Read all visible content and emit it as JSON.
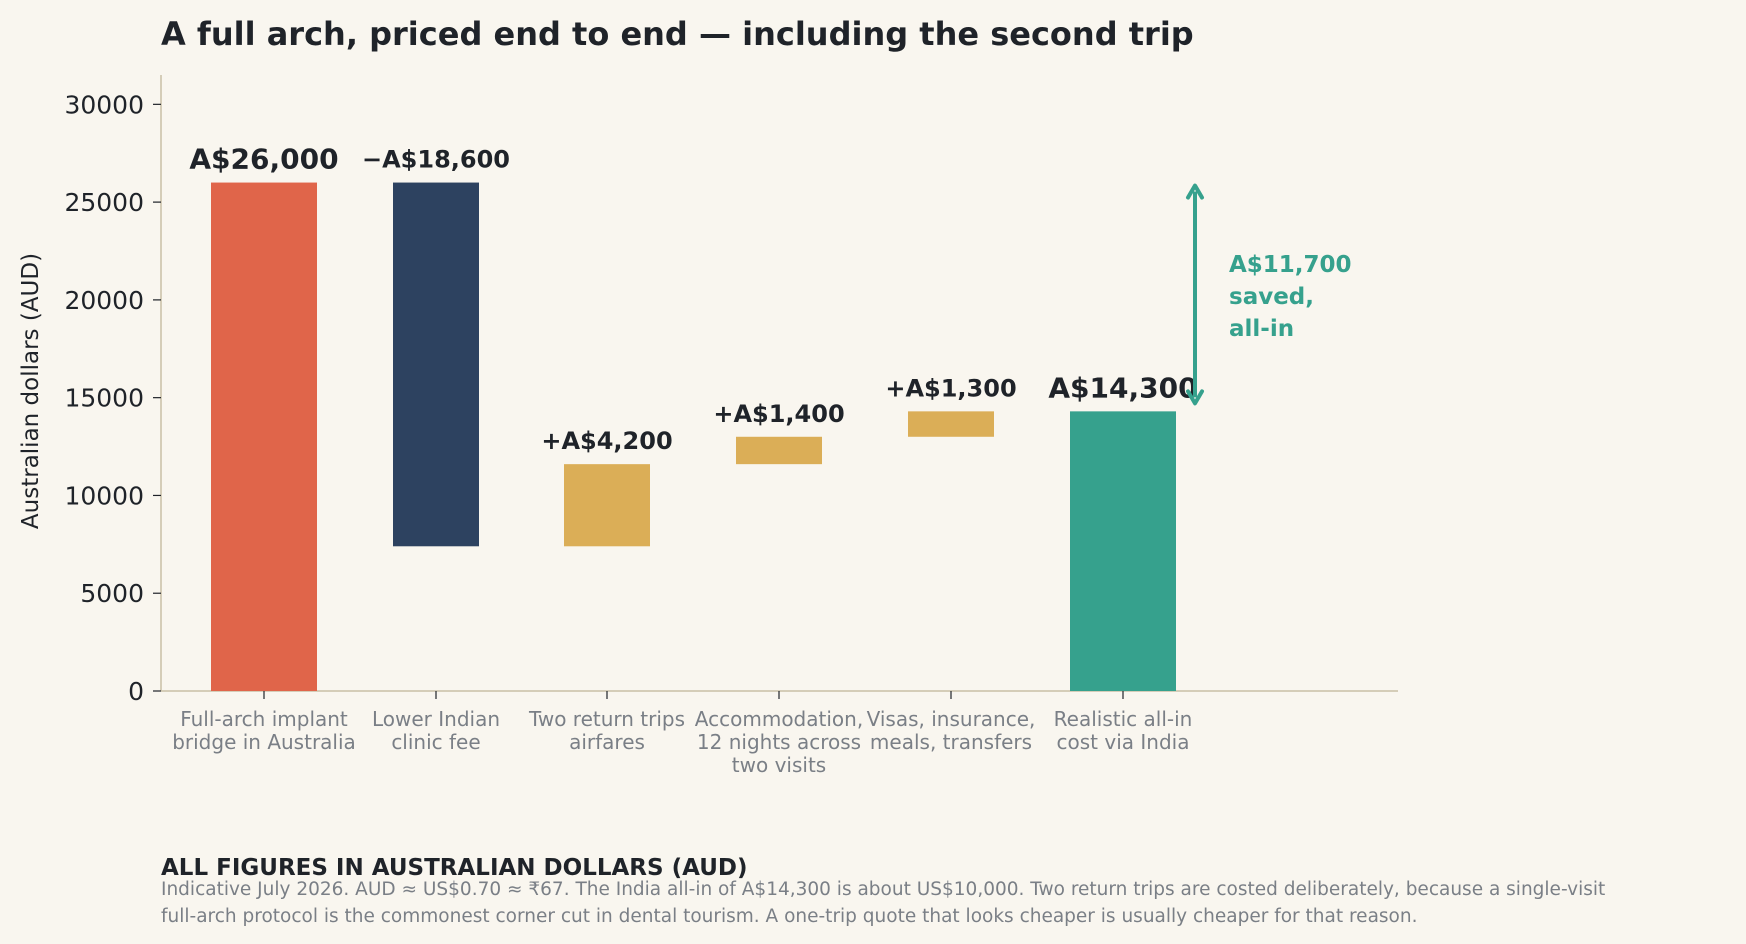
{
  "chart_data": {
    "type": "bar",
    "subtype": "waterfall",
    "title": "A full arch, priced end to end — including the second trip",
    "ylabel": "Australian dollars (AUD)",
    "ylim": [
      0,
      31500
    ],
    "yticks": [
      0,
      5000,
      10000,
      15000,
      20000,
      25000,
      30000
    ],
    "grid": false,
    "categories": [
      [
        "Full-arch implant",
        "bridge in Australia"
      ],
      [
        "Lower Indian",
        "clinic fee"
      ],
      [
        "Two return trips",
        "airfares"
      ],
      [
        "Accommodation,",
        "12 nights across",
        "two visits"
      ],
      [
        "Visas, insurance,",
        "meals, transfers"
      ],
      [
        "Realistic all-in",
        "cost via India"
      ]
    ],
    "bars": [
      {
        "kind": "total",
        "start": 0,
        "end": 26000,
        "label": "A$26,000",
        "color": "#e0654a"
      },
      {
        "kind": "decrease",
        "start": 26000,
        "end": 7400,
        "label": "−A$18,600",
        "color": "#2d4260"
      },
      {
        "kind": "increase",
        "start": 7400,
        "end": 11600,
        "label": "+A$4,200",
        "color": "#dbae57"
      },
      {
        "kind": "increase",
        "start": 11600,
        "end": 13000,
        "label": "+A$1,400",
        "color": "#dbae57"
      },
      {
        "kind": "increase",
        "start": 13000,
        "end": 14300,
        "label": "+A$1,300",
        "color": "#dbae57"
      },
      {
        "kind": "total",
        "start": 0,
        "end": 14300,
        "label": "A$14,300",
        "color": "#36a18d"
      }
    ],
    "annotation": {
      "from": 26000,
      "to": 14300,
      "text": [
        "A$11,700",
        "saved,",
        "all-in"
      ],
      "color": "#36a18d"
    }
  },
  "footnote": {
    "heading": "ALL FIGURES IN AUSTRALIAN DOLLARS (AUD)",
    "lines": [
      "Indicative July 2026. AUD ≈ US$0.70 ≈ ₹67. The India all-in of A$14,300 is about US$10,000. Two return trips are costed deliberately, because a single-visit",
      "full-arch protocol is the commonest corner cut in dental tourism. A one-trip quote that looks cheaper is usually cheaper for that reason."
    ]
  }
}
